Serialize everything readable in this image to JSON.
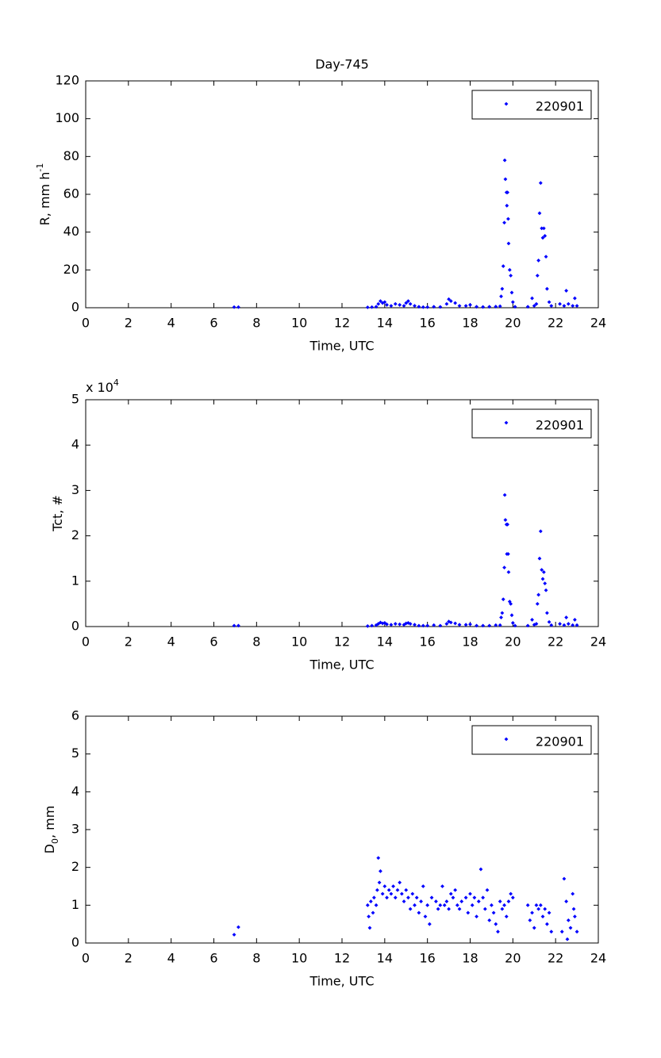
{
  "chart_data": [
    {
      "type": "scatter",
      "title": "Day-745",
      "xlabel": "Time, UTC",
      "ylabel": [
        {
          "text": "R, mm h"
        },
        {
          "text": "-1",
          "sup": true
        }
      ],
      "xlim": [
        0,
        24
      ],
      "ylim": [
        0,
        120
      ],
      "xticks": [
        0,
        2,
        4,
        6,
        8,
        10,
        12,
        14,
        16,
        18,
        20,
        22,
        24
      ],
      "yticks": [
        0,
        20,
        40,
        60,
        80,
        100,
        120
      ],
      "legend": "upper right",
      "x": [
        6.95,
        7.15,
        13.2,
        13.4,
        13.6,
        13.7,
        13.8,
        13.9,
        14.0,
        14.1,
        14.3,
        14.5,
        14.7,
        14.9,
        15.0,
        15.1,
        15.2,
        15.4,
        15.6,
        15.8,
        16.0,
        16.3,
        16.6,
        16.9,
        17.0,
        17.1,
        17.3,
        17.5,
        17.8,
        18.0,
        18.3,
        18.6,
        18.9,
        19.2,
        19.4,
        19.45,
        19.5,
        19.55,
        19.6,
        19.62,
        19.65,
        19.7,
        19.72,
        19.75,
        19.78,
        19.8,
        19.85,
        19.9,
        19.95,
        20.0,
        20.1,
        20.7,
        20.9,
        21.0,
        21.1,
        21.15,
        21.2,
        21.25,
        21.3,
        21.35,
        21.4,
        21.45,
        21.5,
        21.55,
        21.6,
        21.7,
        21.8,
        22.2,
        22.4,
        22.5,
        22.6,
        22.8,
        22.9,
        23.0
      ],
      "series": [
        {
          "name": "220901",
          "color": "#0000ff",
          "values": [
            0.3,
            0.3,
            0.2,
            0.3,
            0.5,
            2,
            3.5,
            2.5,
            3,
            1.5,
            1,
            2,
            1.5,
            1,
            2.5,
            3.5,
            2,
            1,
            0.5,
            0.3,
            0.3,
            0.5,
            0.4,
            2,
            4.5,
            3.5,
            2.5,
            1,
            1,
            1.5,
            0.5,
            0.4,
            0.5,
            0.6,
            0.8,
            6,
            10,
            22,
            45,
            78,
            68,
            61,
            54,
            61,
            47,
            34,
            20,
            17,
            8,
            3,
            0.5,
            0.5,
            5,
            1,
            2,
            17,
            25,
            50,
            66,
            42,
            37,
            42,
            38,
            27,
            10,
            3,
            1,
            2,
            1,
            9,
            2,
            1,
            5,
            1
          ]
        }
      ]
    },
    {
      "type": "scatter",
      "xlabel": "Time, UTC",
      "ylabel": [
        {
          "text": "Tct, #"
        }
      ],
      "exponent": [
        {
          "text": "x 10"
        },
        {
          "text": "4",
          "sup": true
        }
      ],
      "xlim": [
        0,
        24
      ],
      "ylim": [
        0,
        5
      ],
      "xticks": [
        0,
        2,
        4,
        6,
        8,
        10,
        12,
        14,
        16,
        18,
        20,
        22,
        24
      ],
      "yticks": [
        0,
        1,
        2,
        3,
        4,
        5
      ],
      "legend": "upper right",
      "x": [
        6.95,
        7.15,
        13.2,
        13.4,
        13.6,
        13.7,
        13.8,
        13.9,
        14.0,
        14.1,
        14.3,
        14.5,
        14.7,
        14.9,
        15.0,
        15.1,
        15.2,
        15.4,
        15.6,
        15.8,
        16.0,
        16.3,
        16.6,
        16.9,
        17.0,
        17.1,
        17.3,
        17.5,
        17.8,
        18.0,
        18.3,
        18.6,
        18.9,
        19.2,
        19.4,
        19.45,
        19.5,
        19.55,
        19.6,
        19.62,
        19.65,
        19.7,
        19.72,
        19.75,
        19.78,
        19.8,
        19.85,
        19.9,
        19.95,
        20.0,
        20.1,
        20.7,
        20.9,
        21.0,
        21.1,
        21.15,
        21.2,
        21.25,
        21.3,
        21.35,
        21.4,
        21.45,
        21.5,
        21.55,
        21.6,
        21.7,
        21.8,
        22.2,
        22.4,
        22.5,
        22.6,
        22.8,
        22.9,
        23.0
      ],
      "series": [
        {
          "name": "220901",
          "color": "#0000ff",
          "values": [
            0.02,
            0.02,
            0.01,
            0.02,
            0.03,
            0.06,
            0.09,
            0.07,
            0.08,
            0.05,
            0.04,
            0.06,
            0.05,
            0.04,
            0.07,
            0.08,
            0.06,
            0.04,
            0.02,
            0.02,
            0.02,
            0.03,
            0.02,
            0.06,
            0.11,
            0.09,
            0.07,
            0.04,
            0.04,
            0.05,
            0.02,
            0.02,
            0.02,
            0.03,
            0.03,
            0.2,
            0.3,
            0.6,
            1.3,
            2.9,
            2.35,
            2.25,
            1.6,
            2.25,
            1.6,
            1.2,
            0.55,
            0.5,
            0.25,
            0.08,
            0.02,
            0.02,
            0.15,
            0.04,
            0.06,
            0.5,
            0.7,
            1.5,
            2.1,
            1.25,
            1.05,
            1.2,
            0.95,
            0.8,
            0.3,
            0.1,
            0.03,
            0.06,
            0.03,
            0.2,
            0.06,
            0.03,
            0.15,
            0.03
          ]
        }
      ]
    },
    {
      "type": "scatter",
      "xlabel": "Time, UTC",
      "ylabel": [
        {
          "text": "D"
        },
        {
          "text": "0",
          "sub": true
        },
        {
          "text": ", mm"
        }
      ],
      "xlim": [
        0,
        24
      ],
      "ylim": [
        0,
        6
      ],
      "xticks": [
        0,
        2,
        4,
        6,
        8,
        10,
        12,
        14,
        16,
        18,
        20,
        22,
        24
      ],
      "yticks": [
        0,
        1,
        2,
        3,
        4,
        5,
        6
      ],
      "legend": "upper right",
      "x": [
        6.95,
        7.15,
        13.2,
        13.25,
        13.3,
        13.35,
        13.45,
        13.5,
        13.6,
        13.65,
        13.7,
        13.75,
        13.8,
        13.9,
        14.0,
        14.1,
        14.2,
        14.3,
        14.4,
        14.5,
        14.6,
        14.7,
        14.8,
        14.9,
        15.0,
        15.1,
        15.2,
        15.3,
        15.4,
        15.5,
        15.6,
        15.7,
        15.8,
        15.9,
        16.0,
        16.1,
        16.2,
        16.4,
        16.5,
        16.6,
        16.7,
        16.8,
        16.9,
        17.0,
        17.1,
        17.2,
        17.3,
        17.4,
        17.5,
        17.6,
        17.8,
        17.9,
        18.0,
        18.1,
        18.2,
        18.3,
        18.4,
        18.5,
        18.6,
        18.7,
        18.8,
        18.9,
        19.0,
        19.1,
        19.2,
        19.3,
        19.4,
        19.5,
        19.6,
        19.7,
        19.8,
        19.9,
        20.0,
        20.7,
        20.8,
        20.9,
        21.0,
        21.1,
        21.2,
        21.3,
        21.4,
        21.5,
        21.6,
        21.7,
        21.8,
        22.3,
        22.4,
        22.5,
        22.55,
        22.6,
        22.7,
        22.8,
        22.85,
        22.9,
        23.0
      ],
      "series": [
        {
          "name": "220901",
          "color": "#0000ff",
          "values": [
            0.22,
            0.42,
            1.0,
            0.7,
            0.4,
            1.1,
            0.8,
            1.2,
            1.0,
            1.4,
            2.25,
            1.6,
            1.9,
            1.3,
            1.5,
            1.2,
            1.4,
            1.3,
            1.5,
            1.2,
            1.4,
            1.6,
            1.3,
            1.1,
            1.4,
            1.2,
            0.9,
            1.3,
            1.0,
            1.2,
            0.8,
            1.1,
            1.5,
            0.7,
            1.0,
            0.5,
            1.2,
            1.1,
            0.9,
            1.0,
            1.5,
            1.0,
            1.1,
            0.9,
            1.3,
            1.2,
            1.4,
            1.0,
            0.9,
            1.1,
            1.2,
            0.8,
            1.3,
            1.0,
            1.2,
            0.7,
            1.1,
            1.95,
            1.2,
            0.9,
            1.4,
            0.6,
            1.0,
            0.8,
            0.5,
            0.3,
            1.1,
            0.9,
            1.0,
            0.7,
            1.1,
            1.3,
            1.2,
            1.0,
            0.6,
            0.8,
            0.4,
            1.0,
            0.9,
            1.0,
            0.7,
            0.9,
            0.5,
            0.8,
            0.3,
            0.3,
            1.7,
            1.1,
            0.1,
            0.6,
            0.4,
            1.3,
            0.9,
            0.7,
            0.3
          ]
        }
      ]
    }
  ]
}
